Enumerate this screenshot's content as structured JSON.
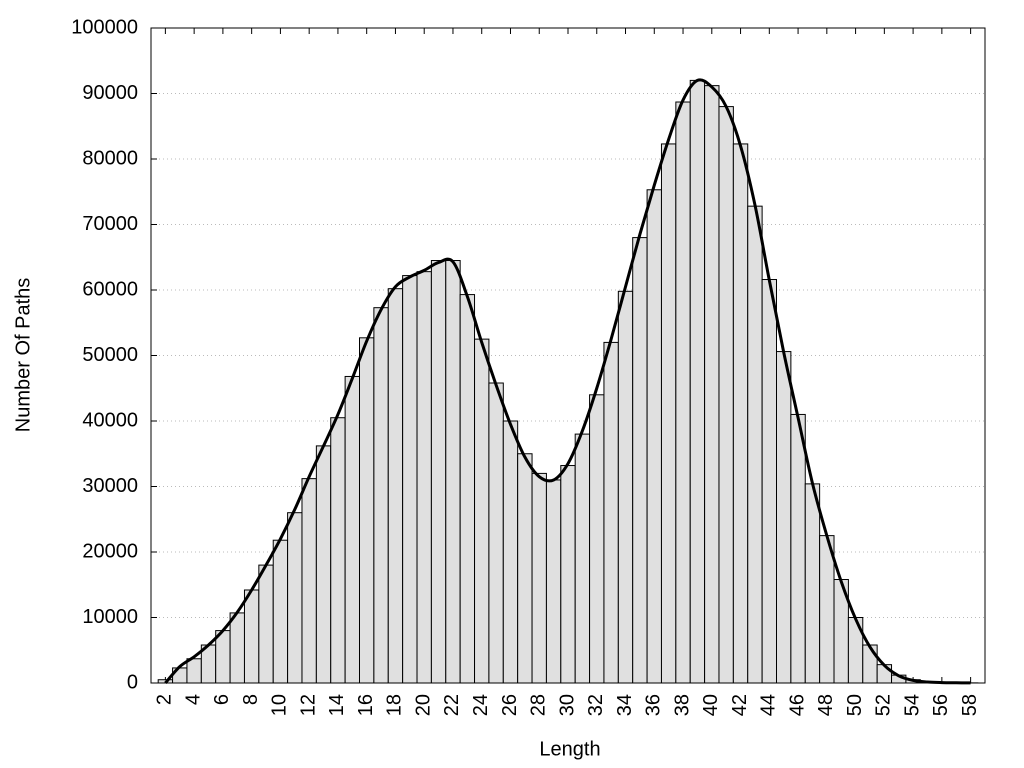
{
  "chart_data": {
    "type": "histogram",
    "xlabel": "Length",
    "ylabel": "Number Of Paths",
    "x": [
      2,
      3,
      4,
      5,
      6,
      7,
      8,
      9,
      10,
      11,
      12,
      13,
      14,
      15,
      16,
      17,
      18,
      19,
      20,
      21,
      22,
      23,
      24,
      25,
      26,
      27,
      28,
      29,
      30,
      31,
      32,
      33,
      34,
      35,
      36,
      37,
      38,
      39,
      40,
      41,
      42,
      43,
      44,
      45,
      46,
      47,
      48,
      49,
      50,
      51,
      52,
      53,
      54,
      55,
      56,
      57,
      58
    ],
    "series": [
      {
        "type": "bar",
        "color": "#e0e0e0",
        "values": [
          500,
          2300,
          3700,
          5800,
          8000,
          10700,
          14200,
          18000,
          21800,
          26000,
          31200,
          36200,
          40500,
          46800,
          52700,
          57300,
          60200,
          62200,
          62800,
          64500,
          64500,
          59300,
          52500,
          45800,
          40000,
          35000,
          32000,
          31000,
          33200,
          38000,
          44000,
          52000,
          59800,
          68000,
          75300,
          82300,
          88700,
          92000,
          91200,
          88000,
          82300,
          72800,
          61600,
          50600,
          41000,
          30400,
          22500,
          15800,
          10000,
          5800,
          2800,
          1200,
          500,
          200,
          100,
          50,
          20
        ]
      },
      {
        "type": "line",
        "color": "#000000",
        "values": [
          0,
          2500,
          4000,
          5800,
          8000,
          10800,
          14200,
          18000,
          22000,
          26500,
          31500,
          36200,
          41000,
          46500,
          52200,
          57000,
          60500,
          62000,
          63000,
          64200,
          64300,
          59000,
          52000,
          45500,
          39500,
          34500,
          31500,
          31000,
          33500,
          38500,
          45000,
          52500,
          60500,
          68500,
          76000,
          83000,
          89000,
          92000,
          91000,
          88000,
          82000,
          73000,
          61500,
          50500,
          40500,
          30500,
          22500,
          15500,
          9800,
          5500,
          2700,
          1100,
          400,
          150,
          60,
          30,
          10
        ]
      }
    ],
    "xlim": [
      1,
      59
    ],
    "xticks": [
      2,
      4,
      6,
      8,
      10,
      12,
      14,
      16,
      18,
      20,
      22,
      24,
      26,
      28,
      30,
      32,
      34,
      36,
      38,
      40,
      42,
      44,
      46,
      48,
      50,
      52,
      54,
      56,
      58
    ],
    "ylim": [
      0,
      100000
    ],
    "yticks": [
      0,
      10000,
      20000,
      30000,
      40000,
      50000,
      60000,
      70000,
      80000,
      90000,
      100000
    ],
    "grid": true
  }
}
